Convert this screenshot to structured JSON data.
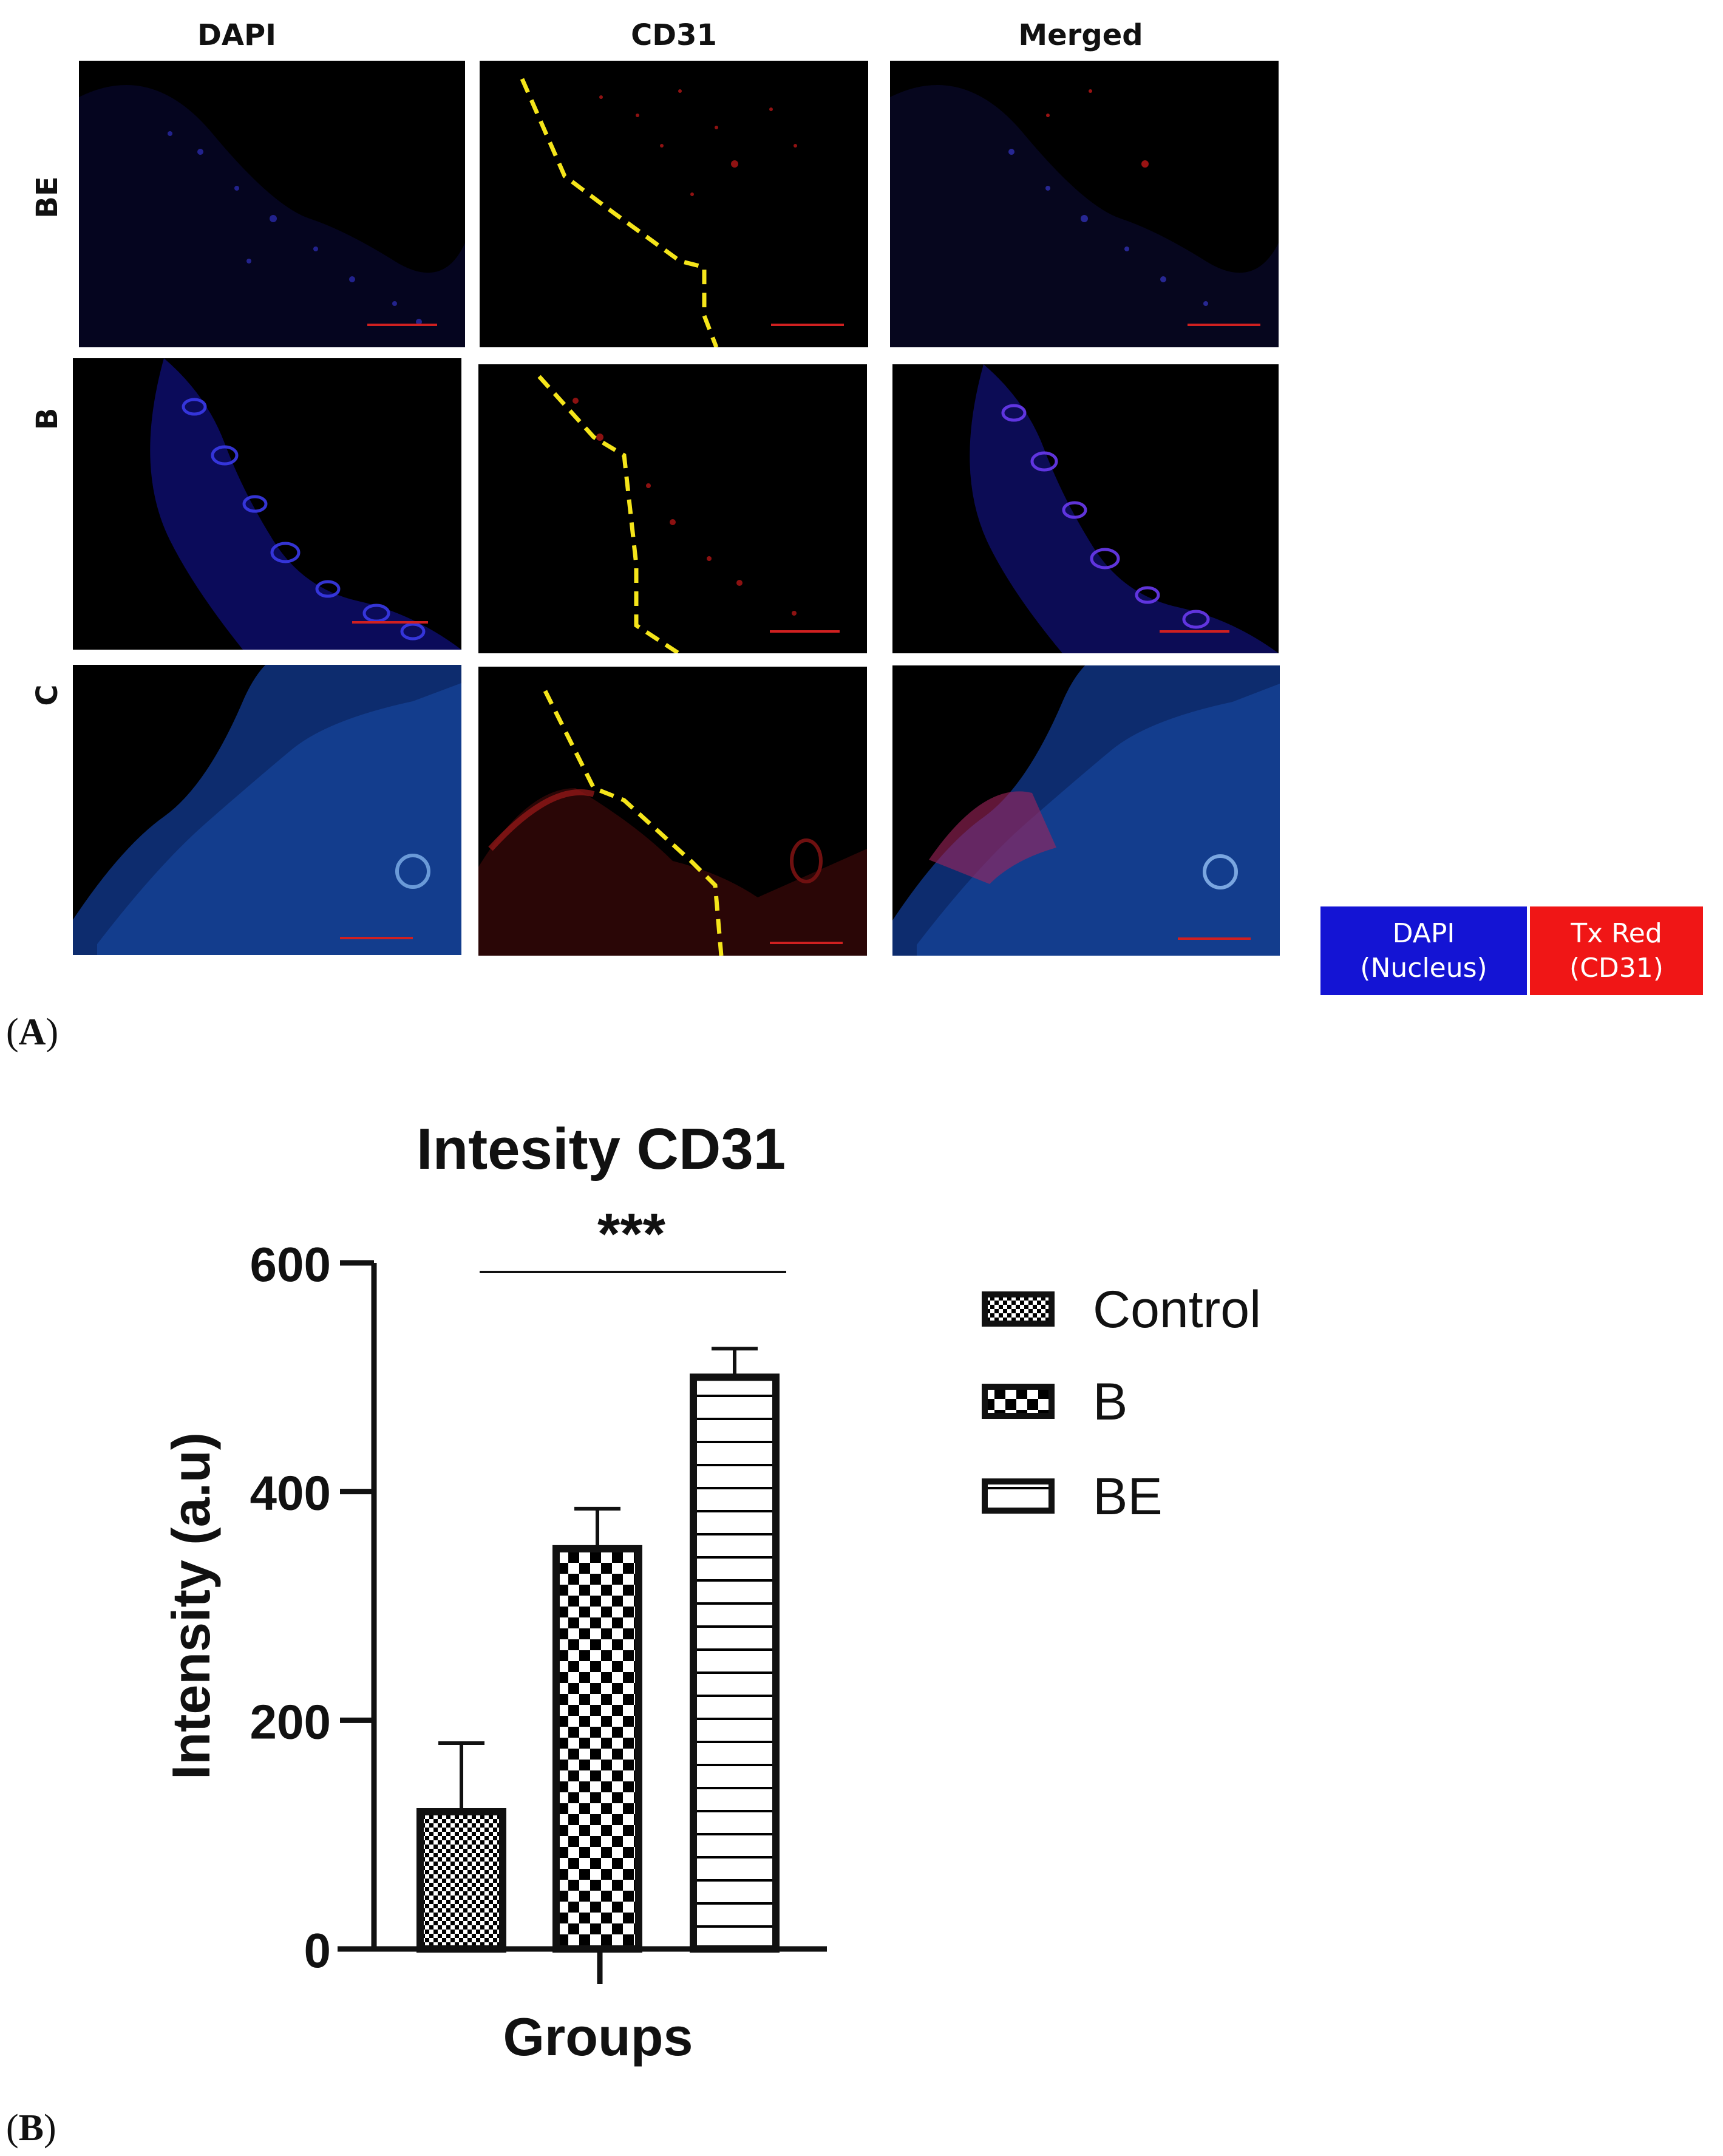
{
  "figure_a": {
    "column_titles": [
      "DAPI",
      "CD31",
      "Merged"
    ],
    "row_labels": [
      "BE",
      "B",
      "C"
    ],
    "legend": [
      {
        "line1": "DAPI",
        "line2": "(Nucleus)",
        "color": "#1414d4"
      },
      {
        "line1": "Tx Red",
        "line2": "(CD31)",
        "color": "#f01616"
      }
    ],
    "panel_letter": "A"
  },
  "figure_b": {
    "panel_letter": "B"
  },
  "chart_data": {
    "type": "bar",
    "title": "Intesity CD31",
    "xlabel": "Groups",
    "ylabel": "Intensity (a.u)",
    "ylim": [
      0,
      600
    ],
    "yticks": [
      0,
      200,
      400,
      600
    ],
    "categories": [
      "Control",
      "B",
      "BE"
    ],
    "values": [
      120,
      350,
      500
    ],
    "errors": [
      60,
      35,
      25
    ],
    "patterns": [
      "fine-checker",
      "checker",
      "horizontal-lines"
    ],
    "significance": "***",
    "legend": [
      "Control",
      "B",
      "BE"
    ],
    "legend_position": "right"
  }
}
